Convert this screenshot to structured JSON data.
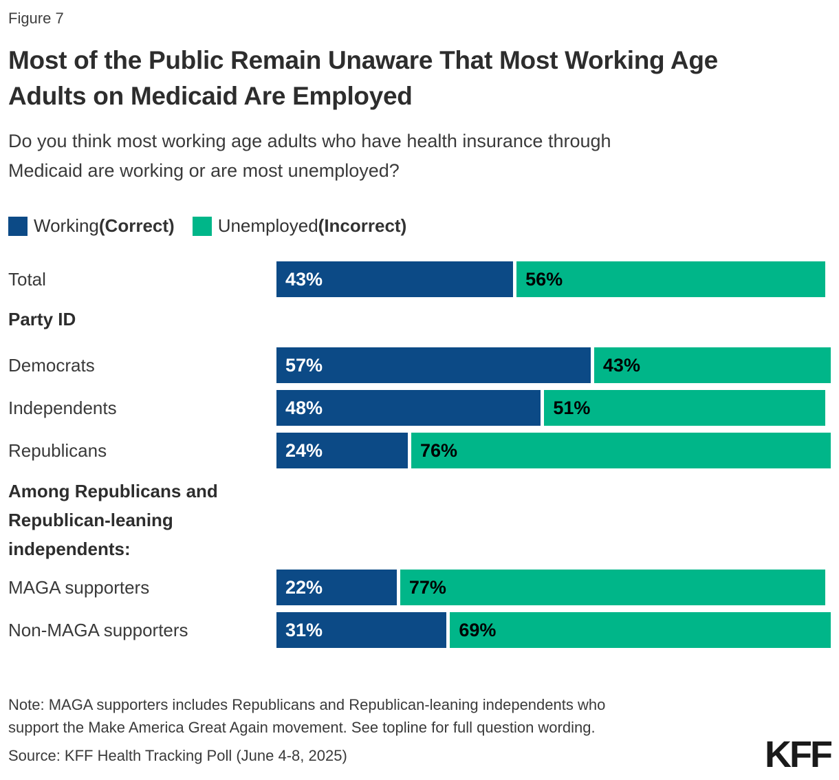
{
  "header": {
    "figure_label": "Figure 7",
    "title_lines": [
      "Most of the Public Remain Unaware That Most Working Age",
      "Adults on Medicaid Are Employed"
    ],
    "subtitle_lines": [
      "Do you think most working age adults who have health insurance through",
      "Medicaid are working or are most unemployed?"
    ]
  },
  "colors": {
    "working": "#0C4A86",
    "unemployed": "#00B689",
    "working_value_label": "#FFFFFF",
    "unemployed_value_label": "#000000"
  },
  "legend": [
    {
      "name": "Working ",
      "qualifier": "(Correct)",
      "color": "#0C4A86"
    },
    {
      "name": "Unemployed",
      "qualifier": "(Incorrect)",
      "color": "#00B689"
    }
  ],
  "chart_data": {
    "type": "bar",
    "orientation": "horizontal-stacked",
    "unit": "%",
    "xlim": [
      0,
      100
    ],
    "grid": false,
    "legend_position": "top-left",
    "series_names": [
      "Working (Correct)",
      "Unemployed(Incorrect)"
    ],
    "rows": [
      {
        "type": "bar",
        "label": "Total",
        "working": 43,
        "unemployed": 56
      },
      {
        "type": "section",
        "label": "Party ID",
        "lines": [
          "Party ID"
        ]
      },
      {
        "type": "bar",
        "label": "Democrats",
        "working": 57,
        "unemployed": 43
      },
      {
        "type": "bar",
        "label": "Independents",
        "working": 48,
        "unemployed": 51
      },
      {
        "type": "bar",
        "label": "Republicans",
        "working": 24,
        "unemployed": 76
      },
      {
        "type": "section",
        "label": "Among Republicans and Republican-leaning independents:",
        "lines": [
          "Among Republicans and",
          "Republican-leaning",
          "independents:"
        ]
      },
      {
        "type": "bar",
        "label": "MAGA supporters",
        "working": 22,
        "unemployed": 77
      },
      {
        "type": "bar",
        "label": "Non-MAGA supporters",
        "working": 31,
        "unemployed": 69
      }
    ]
  },
  "footer": {
    "note_lines": [
      "Note: MAGA supporters includes Republicans and Republican-leaning independents who",
      "support the Make America Great Again movement. See topline for full question wording."
    ],
    "source": "Source: KFF Health Tracking Poll (June 4-8, 2025)",
    "logo": "KFF"
  }
}
